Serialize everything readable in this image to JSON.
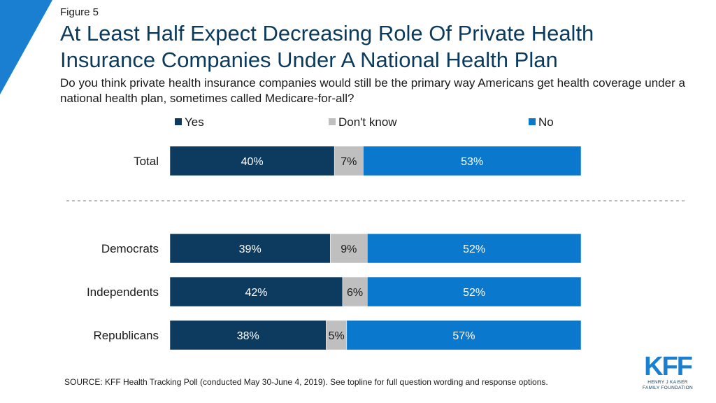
{
  "figure_label": "Figure 5",
  "title": "At Least Half Expect Decreasing Role Of Private Health Insurance Companies Under A National Health Plan",
  "subtitle": "Do you think private health insurance companies would still be the primary way Americans get health coverage under a national health plan, sometimes called Medicare-for-all?",
  "source": "SOURCE: KFF Health Tracking Poll (conducted May 30-June 4, 2019). See topline for full question wording and response options.",
  "logo": {
    "mark": "KFF",
    "line1": "HENRY J KAISER",
    "line2": "FAMILY FOUNDATION"
  },
  "colors": {
    "yes": "#0d3a5f",
    "dont_know": "#bfbfbf",
    "no": "#0a78cc",
    "accent": "#1a7fd0"
  },
  "chart_data": {
    "type": "bar",
    "orientation": "horizontal",
    "stacked": true,
    "percent": true,
    "legend_position": "top",
    "categories": [
      "Total",
      "Democrats",
      "Independents",
      "Republicans"
    ],
    "series": [
      {
        "name": "Yes",
        "values": [
          40,
          39,
          42,
          38
        ]
      },
      {
        "name": "Don't know",
        "values": [
          7,
          9,
          6,
          5
        ]
      },
      {
        "name": "No",
        "values": [
          53,
          52,
          52,
          57
        ]
      }
    ],
    "data_labels": [
      [
        "40%",
        "7%",
        "53%"
      ],
      [
        "39%",
        "9%",
        "52%"
      ],
      [
        "42%",
        "6%",
        "52%"
      ],
      [
        "38%",
        "5%",
        "57%"
      ]
    ],
    "xlim": [
      0,
      100
    ]
  }
}
